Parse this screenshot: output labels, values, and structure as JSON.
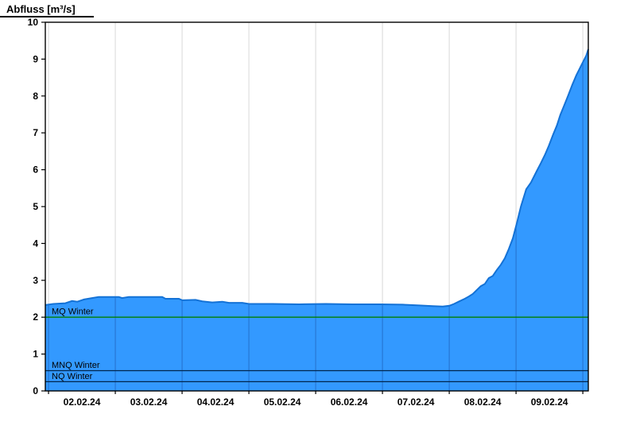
{
  "chart_data": {
    "type": "area",
    "title": "Abfluss [m³/s]",
    "ylabel": "Abfluss [m³/s]",
    "xlabel": "",
    "ylim": [
      0,
      10
    ],
    "ytick_step": 1,
    "grid": "vertical-daily",
    "legend_position": "none",
    "x_tick_labels": [
      "02.02.24",
      "03.02.24",
      "04.02.24",
      "05.02.24",
      "06.02.24",
      "07.02.24",
      "08.02.24",
      "09.02.24"
    ],
    "x_domain_days": 8.13,
    "first_midnight_offset_days": 0.048,
    "noon_offset_days": 0.548,
    "colors": {
      "area_fill": "#3399ff",
      "area_line": "#1472d6",
      "axis": "#000000",
      "grid": "#d8d8d8",
      "grid_on_area": "#1a4fa0",
      "mq_line": "#008000",
      "low_flow_line": "#00264d"
    },
    "reference_lines": [
      {
        "label": "MQ Winter",
        "value": 2.0,
        "color": "#008000"
      },
      {
        "label": "MNQ Winter",
        "value": 0.55,
        "color": "#00264d"
      },
      {
        "label": "NQ Winter",
        "value": 0.25,
        "color": "#00264d"
      }
    ],
    "series": [
      {
        "name": "Abfluss",
        "points": [
          [
            0.0,
            2.33
          ],
          [
            0.12,
            2.36
          ],
          [
            0.3,
            2.38
          ],
          [
            0.4,
            2.44
          ],
          [
            0.48,
            2.42
          ],
          [
            0.58,
            2.48
          ],
          [
            0.7,
            2.52
          ],
          [
            0.8,
            2.55
          ],
          [
            1.1,
            2.55
          ],
          [
            1.15,
            2.52
          ],
          [
            1.25,
            2.55
          ],
          [
            1.6,
            2.55
          ],
          [
            1.75,
            2.55
          ],
          [
            1.8,
            2.5
          ],
          [
            2.0,
            2.5
          ],
          [
            2.05,
            2.46
          ],
          [
            2.25,
            2.47
          ],
          [
            2.35,
            2.43
          ],
          [
            2.5,
            2.4
          ],
          [
            2.65,
            2.42
          ],
          [
            2.75,
            2.39
          ],
          [
            2.95,
            2.39
          ],
          [
            3.05,
            2.36
          ],
          [
            3.4,
            2.36
          ],
          [
            3.8,
            2.35
          ],
          [
            4.2,
            2.36
          ],
          [
            4.6,
            2.35
          ],
          [
            5.0,
            2.35
          ],
          [
            5.35,
            2.34
          ],
          [
            5.6,
            2.32
          ],
          [
            5.8,
            2.3
          ],
          [
            5.95,
            2.29
          ],
          [
            6.05,
            2.31
          ],
          [
            6.12,
            2.36
          ],
          [
            6.2,
            2.43
          ],
          [
            6.28,
            2.5
          ],
          [
            6.34,
            2.56
          ],
          [
            6.4,
            2.63
          ],
          [
            6.52,
            2.84
          ],
          [
            6.58,
            2.9
          ],
          [
            6.64,
            3.06
          ],
          [
            6.7,
            3.12
          ],
          [
            6.76,
            3.28
          ],
          [
            6.82,
            3.42
          ],
          [
            6.88,
            3.6
          ],
          [
            6.94,
            3.85
          ],
          [
            7.0,
            4.14
          ],
          [
            7.06,
            4.55
          ],
          [
            7.12,
            5.0
          ],
          [
            7.2,
            5.47
          ],
          [
            7.27,
            5.65
          ],
          [
            7.36,
            5.97
          ],
          [
            7.42,
            6.18
          ],
          [
            7.48,
            6.4
          ],
          [
            7.54,
            6.65
          ],
          [
            7.6,
            6.94
          ],
          [
            7.66,
            7.2
          ],
          [
            7.71,
            7.48
          ],
          [
            7.77,
            7.75
          ],
          [
            7.83,
            8.02
          ],
          [
            7.89,
            8.3
          ],
          [
            7.95,
            8.56
          ],
          [
            8.05,
            8.92
          ],
          [
            8.1,
            9.1
          ],
          [
            8.13,
            9.27
          ]
        ]
      }
    ]
  }
}
